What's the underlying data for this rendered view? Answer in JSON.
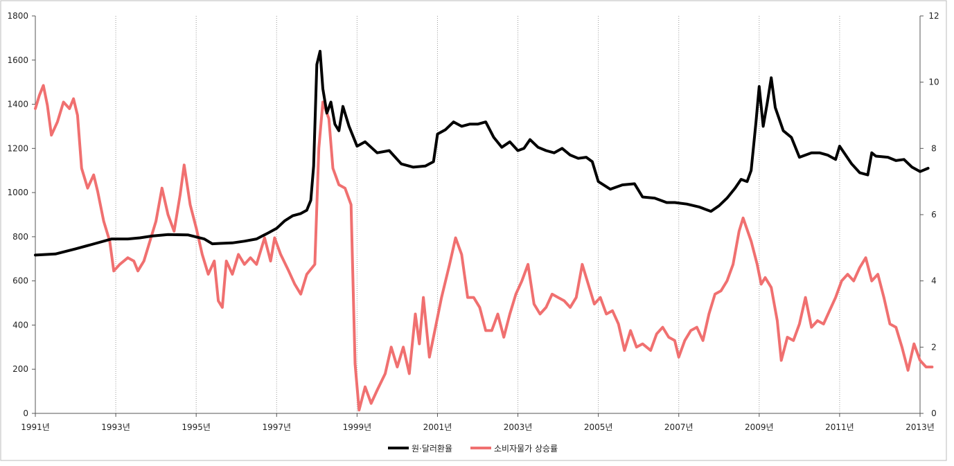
{
  "chart_data": {
    "type": "line",
    "title": "",
    "xlabel": "",
    "ylabel": "",
    "x_tick_labels": [
      "1991년",
      "1993년",
      "1995년",
      "1997년",
      "1999년",
      "2001년",
      "2003년",
      "2005년",
      "2007년",
      "2009년",
      "2011년",
      "2013년"
    ],
    "x_tick_years": [
      1991,
      1993,
      1995,
      1997,
      1999,
      2001,
      2003,
      2005,
      2007,
      2009,
      2011,
      2013
    ],
    "xlim": [
      1991,
      2013
    ],
    "y_left_ticks": [
      0,
      200,
      400,
      600,
      800,
      1000,
      1200,
      1400,
      1600,
      1800
    ],
    "y_left_lim": [
      0,
      1800
    ],
    "y_right_ticks": [
      0,
      2,
      4,
      6,
      8,
      10,
      12
    ],
    "y_right_lim": [
      0,
      12
    ],
    "grid": "vertical dotted at year ticks",
    "legend_position": "bottom-center",
    "series": [
      {
        "name": "원·달러환율",
        "color": "#000000",
        "axis": "left",
        "points": [
          [
            1991.0,
            717
          ],
          [
            1991.5,
            722
          ],
          [
            1992.0,
            745
          ],
          [
            1992.5,
            770
          ],
          [
            1992.9,
            790
          ],
          [
            1993.3,
            790
          ],
          [
            1993.6,
            795
          ],
          [
            1993.9,
            803
          ],
          [
            1994.3,
            810
          ],
          [
            1994.8,
            808
          ],
          [
            1995.2,
            790
          ],
          [
            1995.4,
            768
          ],
          [
            1995.6,
            770
          ],
          [
            1995.9,
            772
          ],
          [
            1996.2,
            780
          ],
          [
            1996.5,
            790
          ],
          [
            1996.8,
            818
          ],
          [
            1997.0,
            838
          ],
          [
            1997.2,
            872
          ],
          [
            1997.4,
            895
          ],
          [
            1997.6,
            905
          ],
          [
            1997.75,
            920
          ],
          [
            1997.85,
            965
          ],
          [
            1997.92,
            1120
          ],
          [
            1998.0,
            1580
          ],
          [
            1998.08,
            1640
          ],
          [
            1998.15,
            1470
          ],
          [
            1998.25,
            1360
          ],
          [
            1998.35,
            1410
          ],
          [
            1998.45,
            1310
          ],
          [
            1998.55,
            1280
          ],
          [
            1998.65,
            1390
          ],
          [
            1998.8,
            1300
          ],
          [
            1999.0,
            1210
          ],
          [
            1999.2,
            1230
          ],
          [
            1999.5,
            1180
          ],
          [
            1999.8,
            1190
          ],
          [
            2000.1,
            1130
          ],
          [
            2000.4,
            1115
          ],
          [
            2000.7,
            1120
          ],
          [
            2000.9,
            1140
          ],
          [
            2001.0,
            1265
          ],
          [
            2001.2,
            1285
          ],
          [
            2001.4,
            1320
          ],
          [
            2001.6,
            1300
          ],
          [
            2001.8,
            1310
          ],
          [
            2002.0,
            1310
          ],
          [
            2002.2,
            1320
          ],
          [
            2002.4,
            1250
          ],
          [
            2002.6,
            1205
          ],
          [
            2002.8,
            1230
          ],
          [
            2003.0,
            1190
          ],
          [
            2003.15,
            1200
          ],
          [
            2003.3,
            1240
          ],
          [
            2003.5,
            1205
          ],
          [
            2003.7,
            1190
          ],
          [
            2003.9,
            1180
          ],
          [
            2004.1,
            1200
          ],
          [
            2004.3,
            1170
          ],
          [
            2004.5,
            1155
          ],
          [
            2004.7,
            1160
          ],
          [
            2004.85,
            1140
          ],
          [
            2005.0,
            1050
          ],
          [
            2005.3,
            1015
          ],
          [
            2005.6,
            1035
          ],
          [
            2005.9,
            1040
          ],
          [
            2006.1,
            980
          ],
          [
            2006.4,
            975
          ],
          [
            2006.7,
            955
          ],
          [
            2006.9,
            955
          ],
          [
            2007.2,
            948
          ],
          [
            2007.5,
            935
          ],
          [
            2007.8,
            915
          ],
          [
            2008.0,
            940
          ],
          [
            2008.2,
            975
          ],
          [
            2008.4,
            1020
          ],
          [
            2008.55,
            1060
          ],
          [
            2008.7,
            1050
          ],
          [
            2008.8,
            1100
          ],
          [
            2008.92,
            1320
          ],
          [
            2009.0,
            1480
          ],
          [
            2009.1,
            1300
          ],
          [
            2009.2,
            1405
          ],
          [
            2009.3,
            1520
          ],
          [
            2009.4,
            1385
          ],
          [
            2009.6,
            1280
          ],
          [
            2009.8,
            1250
          ],
          [
            2010.0,
            1160
          ],
          [
            2010.3,
            1180
          ],
          [
            2010.5,
            1180
          ],
          [
            2010.7,
            1170
          ],
          [
            2010.9,
            1150
          ],
          [
            2011.0,
            1210
          ],
          [
            2011.3,
            1130
          ],
          [
            2011.5,
            1090
          ],
          [
            2011.7,
            1080
          ],
          [
            2011.8,
            1180
          ],
          [
            2011.9,
            1165
          ],
          [
            2012.2,
            1160
          ],
          [
            2012.4,
            1145
          ],
          [
            2012.6,
            1150
          ],
          [
            2012.8,
            1115
          ],
          [
            2013.0,
            1095
          ],
          [
            2013.2,
            1110
          ]
        ]
      },
      {
        "name": "소비자물가 상승률",
        "color": "#f07070",
        "axis": "right",
        "points": [
          [
            1991.0,
            9.2
          ],
          [
            1991.1,
            9.6
          ],
          [
            1991.2,
            9.9
          ],
          [
            1991.3,
            9.3
          ],
          [
            1991.4,
            8.4
          ],
          [
            1991.55,
            8.8
          ],
          [
            1991.7,
            9.4
          ],
          [
            1991.85,
            9.2
          ],
          [
            1991.95,
            9.5
          ],
          [
            1992.05,
            9.0
          ],
          [
            1992.15,
            7.4
          ],
          [
            1992.3,
            6.8
          ],
          [
            1992.45,
            7.2
          ],
          [
            1992.55,
            6.7
          ],
          [
            1992.7,
            5.8
          ],
          [
            1992.85,
            5.2
          ],
          [
            1992.95,
            4.3
          ],
          [
            1993.1,
            4.5
          ],
          [
            1993.3,
            4.7
          ],
          [
            1993.45,
            4.6
          ],
          [
            1993.55,
            4.3
          ],
          [
            1993.7,
            4.6
          ],
          [
            1993.85,
            5.2
          ],
          [
            1994.0,
            5.8
          ],
          [
            1994.15,
            6.8
          ],
          [
            1994.3,
            6.0
          ],
          [
            1994.45,
            5.5
          ],
          [
            1994.6,
            6.6
          ],
          [
            1994.7,
            7.5
          ],
          [
            1994.85,
            6.3
          ],
          [
            1995.0,
            5.6
          ],
          [
            1995.15,
            4.8
          ],
          [
            1995.3,
            4.2
          ],
          [
            1995.45,
            4.6
          ],
          [
            1995.55,
            3.4
          ],
          [
            1995.65,
            3.2
          ],
          [
            1995.75,
            4.6
          ],
          [
            1995.9,
            4.2
          ],
          [
            1996.05,
            4.8
          ],
          [
            1996.2,
            4.5
          ],
          [
            1996.35,
            4.7
          ],
          [
            1996.5,
            4.5
          ],
          [
            1996.7,
            5.3
          ],
          [
            1996.85,
            4.6
          ],
          [
            1996.95,
            5.3
          ],
          [
            1997.1,
            4.8
          ],
          [
            1997.3,
            4.3
          ],
          [
            1997.45,
            3.9
          ],
          [
            1997.6,
            3.6
          ],
          [
            1997.75,
            4.2
          ],
          [
            1997.95,
            4.5
          ],
          [
            1998.05,
            8.0
          ],
          [
            1998.15,
            9.4
          ],
          [
            1998.3,
            8.9
          ],
          [
            1998.4,
            7.4
          ],
          [
            1998.55,
            6.9
          ],
          [
            1998.7,
            6.8
          ],
          [
            1998.85,
            6.3
          ],
          [
            1998.95,
            1.5
          ],
          [
            1999.05,
            0.1
          ],
          [
            1999.2,
            0.8
          ],
          [
            1999.35,
            0.3
          ],
          [
            1999.5,
            0.7
          ],
          [
            1999.7,
            1.2
          ],
          [
            1999.85,
            2.0
          ],
          [
            2000.0,
            1.4
          ],
          [
            2000.15,
            2.0
          ],
          [
            2000.3,
            1.2
          ],
          [
            2000.45,
            3.0
          ],
          [
            2000.55,
            2.1
          ],
          [
            2000.65,
            3.5
          ],
          [
            2000.8,
            1.7
          ],
          [
            2000.95,
            2.6
          ],
          [
            2001.1,
            3.5
          ],
          [
            2001.3,
            4.5
          ],
          [
            2001.45,
            5.3
          ],
          [
            2001.6,
            4.8
          ],
          [
            2001.75,
            3.5
          ],
          [
            2001.9,
            3.5
          ],
          [
            2002.05,
            3.2
          ],
          [
            2002.2,
            2.5
          ],
          [
            2002.35,
            2.5
          ],
          [
            2002.5,
            3.0
          ],
          [
            2002.65,
            2.3
          ],
          [
            2002.8,
            3.0
          ],
          [
            2002.95,
            3.6
          ],
          [
            2003.1,
            4.0
          ],
          [
            2003.25,
            4.5
          ],
          [
            2003.4,
            3.3
          ],
          [
            2003.55,
            3.0
          ],
          [
            2003.7,
            3.2
          ],
          [
            2003.85,
            3.6
          ],
          [
            2004.0,
            3.5
          ],
          [
            2004.15,
            3.4
          ],
          [
            2004.3,
            3.2
          ],
          [
            2004.45,
            3.5
          ],
          [
            2004.6,
            4.5
          ],
          [
            2004.75,
            3.9
          ],
          [
            2004.9,
            3.3
          ],
          [
            2005.05,
            3.5
          ],
          [
            2005.2,
            3.0
          ],
          [
            2005.35,
            3.1
          ],
          [
            2005.5,
            2.7
          ],
          [
            2005.65,
            1.9
          ],
          [
            2005.8,
            2.5
          ],
          [
            2005.95,
            2.0
          ],
          [
            2006.1,
            2.1
          ],
          [
            2006.3,
            1.9
          ],
          [
            2006.45,
            2.4
          ],
          [
            2006.6,
            2.6
          ],
          [
            2006.75,
            2.3
          ],
          [
            2006.9,
            2.2
          ],
          [
            2007.0,
            1.7
          ],
          [
            2007.15,
            2.2
          ],
          [
            2007.3,
            2.5
          ],
          [
            2007.45,
            2.6
          ],
          [
            2007.6,
            2.2
          ],
          [
            2007.75,
            3.0
          ],
          [
            2007.9,
            3.6
          ],
          [
            2008.05,
            3.7
          ],
          [
            2008.2,
            4.0
          ],
          [
            2008.35,
            4.5
          ],
          [
            2008.5,
            5.5
          ],
          [
            2008.6,
            5.9
          ],
          [
            2008.8,
            5.2
          ],
          [
            2008.95,
            4.5
          ],
          [
            2009.05,
            3.9
          ],
          [
            2009.15,
            4.1
          ],
          [
            2009.3,
            3.8
          ],
          [
            2009.45,
            2.8
          ],
          [
            2009.55,
            1.6
          ],
          [
            2009.7,
            2.3
          ],
          [
            2009.85,
            2.2
          ],
          [
            2010.0,
            2.7
          ],
          [
            2010.15,
            3.5
          ],
          [
            2010.3,
            2.6
          ],
          [
            2010.45,
            2.8
          ],
          [
            2010.6,
            2.7
          ],
          [
            2010.75,
            3.1
          ],
          [
            2010.9,
            3.5
          ],
          [
            2011.05,
            4.0
          ],
          [
            2011.2,
            4.2
          ],
          [
            2011.35,
            4.0
          ],
          [
            2011.5,
            4.4
          ],
          [
            2011.65,
            4.7
          ],
          [
            2011.8,
            4.0
          ],
          [
            2011.95,
            4.2
          ],
          [
            2012.1,
            3.5
          ],
          [
            2012.25,
            2.7
          ],
          [
            2012.4,
            2.6
          ],
          [
            2012.55,
            2.0
          ],
          [
            2012.7,
            1.3
          ],
          [
            2012.85,
            2.1
          ],
          [
            2013.0,
            1.6
          ],
          [
            2013.15,
            1.4
          ],
          [
            2013.3,
            1.4
          ]
        ]
      }
    ]
  }
}
